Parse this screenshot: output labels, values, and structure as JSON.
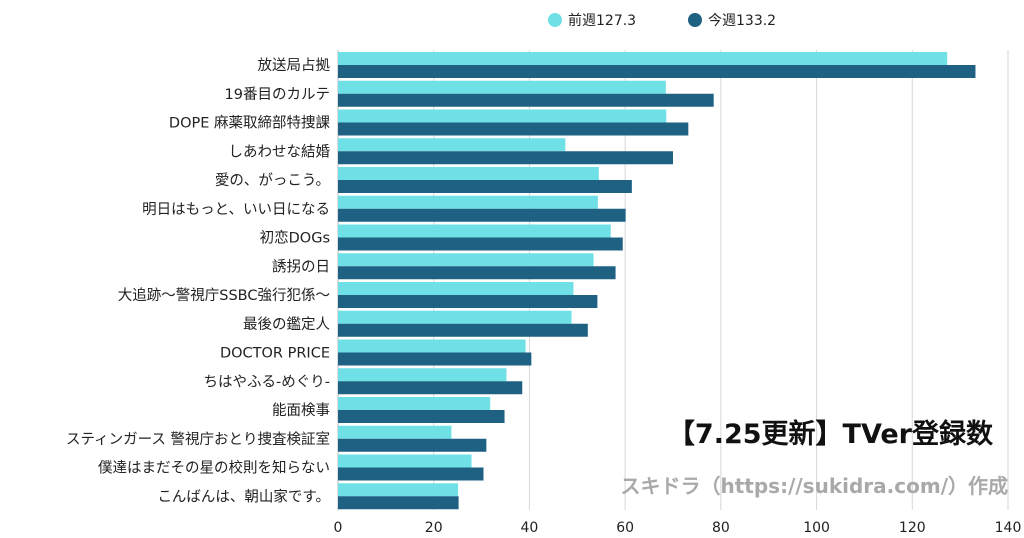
{
  "chart_data": {
    "type": "bar",
    "orientation": "horizontal",
    "title": "【7.25更新】TVer登録数",
    "subtitle": "スキドラ（https://sukidra.com/）作成",
    "categories": [
      "放送局占拠",
      "19番目のカルテ",
      "DOPE 麻薬取締部特捜課",
      "しあわせな結婚",
      "愛の、がっこう。",
      "明日はもっと、いい日になる",
      "初恋DOGs",
      "誘拐の日",
      "大追跡〜警視庁SSBC強行犯係〜",
      "最後の鑑定人",
      "DOCTOR PRICE",
      "ちはやふる-めぐり-",
      "能面検事",
      "スティンガース 警視庁おとり捜査検証室",
      "僕達はまだその星の校則を知らない",
      "こんばんは、朝山家です。"
    ],
    "series": [
      {
        "name": "前週127.3",
        "color": "#6fe0e6",
        "values": [
          127.3,
          68.5,
          68.6,
          47.5,
          54.5,
          54.3,
          57.0,
          53.4,
          49.2,
          48.8,
          39.2,
          35.2,
          31.8,
          23.7,
          27.9,
          25.1
        ]
      },
      {
        "name": "今週133.2",
        "color": "#1e6183",
        "values": [
          133.2,
          78.5,
          73.2,
          70.0,
          61.4,
          60.1,
          59.5,
          58.0,
          54.2,
          52.2,
          40.4,
          38.5,
          34.8,
          31.0,
          30.4,
          25.2
        ]
      }
    ],
    "xlim": [
      0,
      140
    ],
    "xticks": [
      "0",
      "20",
      "40",
      "60",
      "80",
      "100",
      "120",
      "140"
    ],
    "grid": true,
    "legend_position": "top"
  }
}
